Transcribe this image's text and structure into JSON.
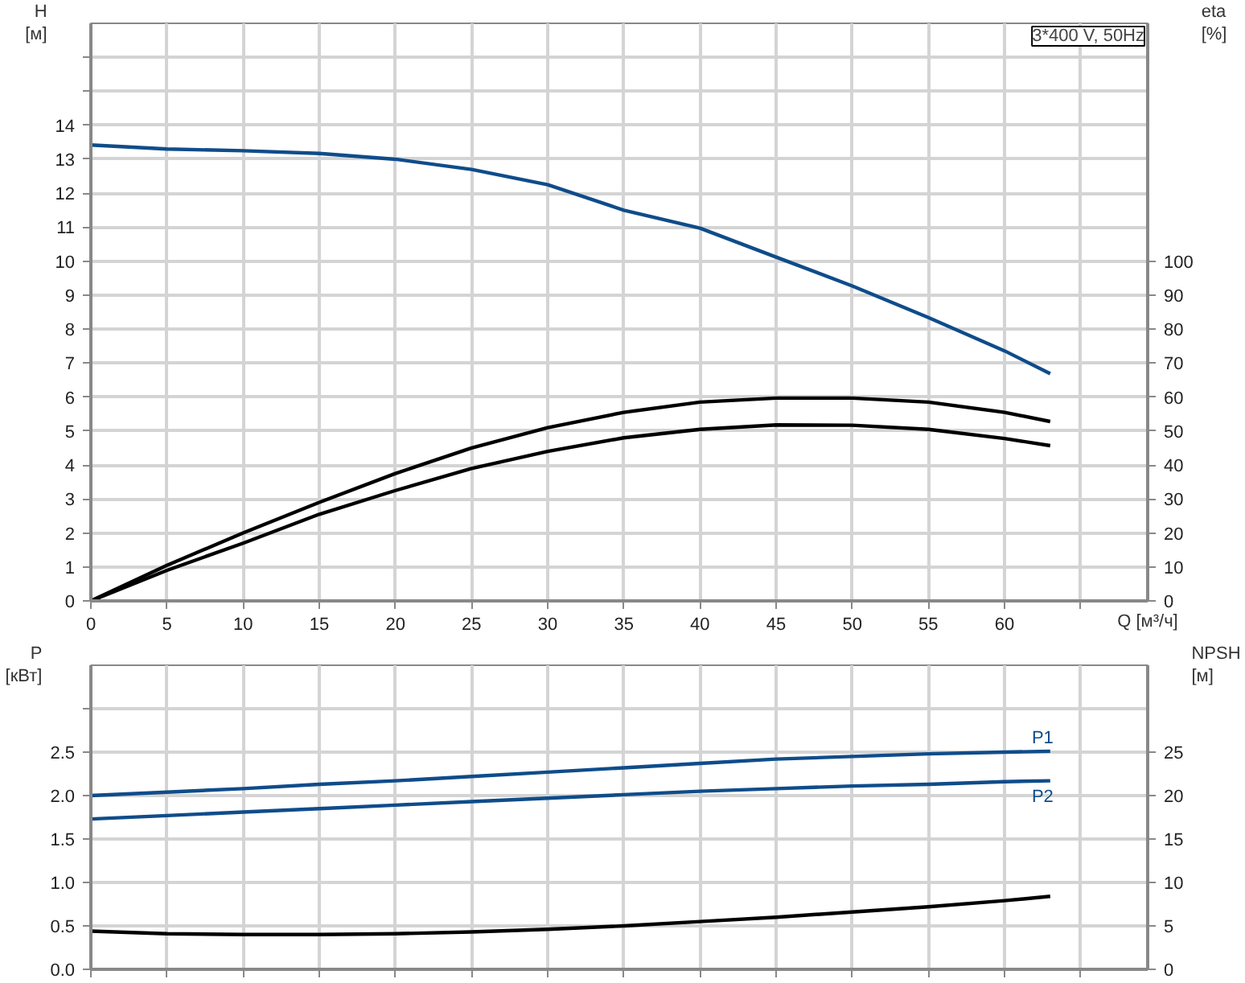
{
  "chart_data": [
    {
      "type": "line",
      "ylabel": "H [м]",
      "y2label": "eta [%]",
      "xlabel": "Q [м³/ч]",
      "annotations": [
        "3*400 V, 50Hz"
      ],
      "x": [
        0,
        5,
        10,
        15,
        20,
        25,
        30,
        35,
        40,
        45,
        50,
        55,
        60,
        63
      ],
      "xlim": [
        0,
        69.4
      ],
      "xticks": [
        0,
        5,
        10,
        15,
        20,
        25,
        30,
        35,
        40,
        45,
        50,
        55,
        60,
        {
          "value": 65,
          "label": null
        }
      ],
      "ylim": [
        0,
        17
      ],
      "yticks": [
        0,
        1,
        2,
        3,
        4,
        5,
        6,
        7,
        8,
        9,
        10,
        11,
        12,
        13,
        14,
        {
          "value": 15,
          "label": null
        },
        {
          "value": 16,
          "label": null
        }
      ],
      "y2lim": [
        0,
        170
      ],
      "y2ticks": [
        0,
        10,
        20,
        30,
        40,
        50,
        60,
        70,
        80,
        90,
        100
      ],
      "grid": true,
      "marker": "none",
      "line_style": "solid",
      "series": [
        {
          "color": "#0f4c8a",
          "values": [
            13.42,
            13.3,
            13.25,
            13.17,
            13.0,
            12.7,
            12.25,
            11.5,
            10.97,
            10.12,
            9.27,
            8.34,
            7.36,
            6.69
          ]
        },
        {
          "color": "#000000",
          "axis": "y2",
          "values": [
            0,
            10.5,
            20,
            29,
            37.5,
            45,
            51,
            55.5,
            58.5,
            59.7,
            59.7,
            58.5,
            55.5,
            52.8
          ]
        },
        {
          "color": "#000000",
          "axis": "y2",
          "values": [
            0,
            9,
            17,
            25.5,
            32.5,
            39,
            44,
            48,
            50.5,
            51.8,
            51.7,
            50.5,
            47.8,
            45.7
          ]
        }
      ]
    },
    {
      "type": "line",
      "ylabel": "P [кВт]",
      "y2label": "NPSH [м]",
      "x": [
        0,
        5,
        10,
        15,
        20,
        25,
        30,
        35,
        40,
        45,
        50,
        55,
        60,
        63
      ],
      "xlim": [
        0,
        69.4
      ],
      "xticks": [
        0,
        5,
        10,
        15,
        20,
        25,
        30,
        35,
        40,
        45,
        50,
        55,
        60,
        {
          "value": 65,
          "label": null
        }
      ],
      "ylim": [
        0,
        3.5
      ],
      "yticks": [
        {
          "value": 0,
          "label": "0.0"
        },
        0.5,
        {
          "value": 1,
          "label": "1.0"
        },
        1.5,
        {
          "value": 2,
          "label": "2.0"
        },
        2.5,
        {
          "value": 3,
          "label": null
        }
      ],
      "y2lim": [
        0,
        35
      ],
      "y2ticks": [
        0,
        5,
        10,
        15,
        20,
        25
      ],
      "grid": true,
      "marker": "none",
      "line_style": "solid",
      "tick_labels": "y",
      "series": [
        {
          "name": "P1",
          "color": "#0f4c8a",
          "values": [
            2.0,
            2.04,
            2.08,
            2.13,
            2.17,
            2.22,
            2.27,
            2.32,
            2.37,
            2.42,
            2.45,
            2.48,
            2.5,
            2.51
          ]
        },
        {
          "name": "P2",
          "color": "#0f4c8a",
          "values": [
            1.73,
            1.77,
            1.81,
            1.85,
            1.89,
            1.93,
            1.97,
            2.01,
            2.05,
            2.08,
            2.11,
            2.13,
            2.16,
            2.17
          ]
        },
        {
          "color": "#000000",
          "axis": "y2",
          "values": [
            4.4,
            4.1,
            4.0,
            4.0,
            4.1,
            4.3,
            4.6,
            5.0,
            5.5,
            6.0,
            6.6,
            7.2,
            7.9,
            8.4
          ]
        }
      ]
    }
  ]
}
